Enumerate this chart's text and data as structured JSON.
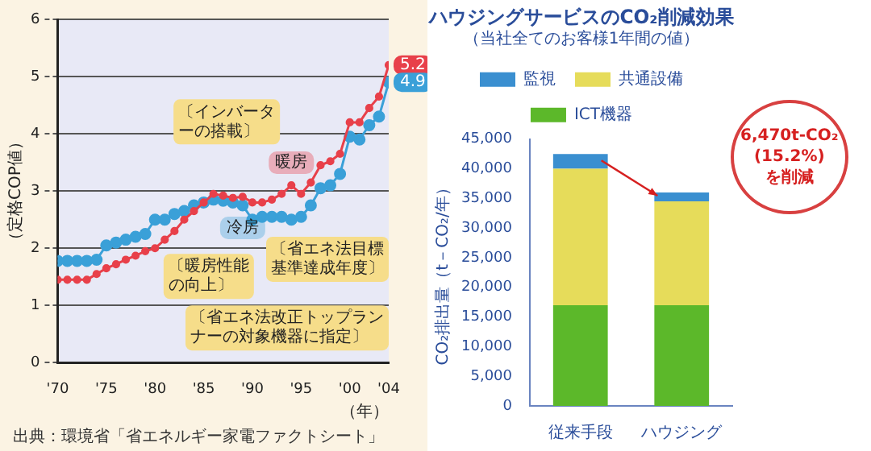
{
  "chart_data": [
    {
      "type": "line",
      "ylabel": "（定格COP値）",
      "xlabel": "（年）",
      "x": [
        1970,
        1971,
        1972,
        1973,
        1974,
        1975,
        1976,
        1977,
        1978,
        1979,
        1980,
        1981,
        1982,
        1983,
        1984,
        1985,
        1986,
        1987,
        1988,
        1989,
        1990,
        1991,
        1992,
        1993,
        1994,
        1995,
        1996,
        1997,
        1998,
        1999,
        2000,
        2001,
        2002,
        2003,
        2004
      ],
      "series": [
        {
          "name": "暖房",
          "color": "#e8404a",
          "values": [
            1.45,
            1.45,
            1.45,
            1.45,
            1.55,
            1.65,
            1.72,
            1.8,
            1.87,
            1.95,
            2.0,
            2.15,
            2.3,
            2.5,
            2.65,
            2.8,
            2.95,
            2.92,
            2.88,
            2.9,
            2.8,
            2.8,
            2.85,
            2.95,
            3.1,
            2.95,
            3.15,
            3.45,
            3.52,
            3.65,
            4.2,
            4.2,
            4.45,
            4.65,
            5.2
          ],
          "value_labels": [
            null,
            null,
            null,
            null,
            null,
            null,
            null,
            null,
            null,
            null,
            null,
            null,
            null,
            null,
            null,
            null,
            null,
            null,
            null,
            null,
            null,
            null,
            null,
            null,
            null,
            null,
            null,
            null,
            null,
            null,
            null,
            null,
            null,
            null,
            "5.2"
          ]
        },
        {
          "name": "冷房",
          "color": "#3aa0d8",
          "values": [
            1.78,
            1.78,
            1.78,
            1.78,
            1.8,
            2.05,
            2.1,
            2.15,
            2.2,
            2.25,
            2.5,
            2.5,
            2.6,
            2.65,
            2.75,
            2.8,
            2.85,
            2.83,
            2.8,
            2.75,
            2.5,
            2.55,
            2.55,
            2.55,
            2.5,
            2.55,
            2.75,
            3.05,
            3.1,
            3.3,
            3.95,
            3.9,
            4.15,
            4.3,
            4.9
          ],
          "value_labels": [
            null,
            null,
            null,
            null,
            null,
            null,
            null,
            null,
            null,
            null,
            null,
            null,
            null,
            null,
            null,
            null,
            null,
            null,
            null,
            null,
            null,
            null,
            null,
            null,
            null,
            null,
            null,
            null,
            null,
            null,
            null,
            null,
            null,
            null,
            "4.9"
          ]
        }
      ],
      "xlim": [
        1970,
        2004
      ],
      "xticks": [
        {
          "value": 1970,
          "label": "'70"
        },
        {
          "value": 1975,
          "label": "'75"
        },
        {
          "value": 1980,
          "label": "'80"
        },
        {
          "value": 1985,
          "label": "'85"
        },
        {
          "value": 1990,
          "label": "'90"
        },
        {
          "value": 1995,
          "label": "'95"
        },
        {
          "value": 2000,
          "label": "'00"
        },
        {
          "value": 2004,
          "label": "'04"
        }
      ],
      "ylim": [
        0,
        6
      ],
      "yticks": [
        0,
        1,
        2,
        3,
        4,
        5,
        6
      ],
      "grid": "y",
      "marker": "circle",
      "legend": false,
      "annotations": [
        "〔インバーターの搭載〕",
        "〔暖房性能の向上〕",
        "〔省エネ法目標基準達成年度〕",
        "〔省エネ法改正トップランナーの対象機器に指定〕",
        "出典：環境省「省エネルギー家電ファクトシート」"
      ]
    },
    {
      "type": "bar",
      "stacked": true,
      "title": "ハウジングサービスのCO₂削減効果",
      "subtitle": "（当社全てのお客様1年間の値）",
      "ylabel": "CO₂排出量（t－CO₂/年）",
      "categories": [
        "従来手段",
        "ハウジング"
      ],
      "series": [
        {
          "name": "ICT機器",
          "color": "#5cb82a",
          "values": [
            17000,
            17000
          ]
        },
        {
          "name": "共通設備",
          "color": "#e6dc5a",
          "values": [
            23000,
            17500
          ]
        },
        {
          "name": "監視",
          "color": "#3a8fd0",
          "values": [
            2500,
            1500
          ]
        }
      ],
      "ylim": [
        0,
        45000
      ],
      "yticks": [
        {
          "value": 0,
          "label": "0"
        },
        {
          "value": 5000,
          "label": "5,000"
        },
        {
          "value": 10000,
          "label": "10,000"
        },
        {
          "value": 15000,
          "label": "15,000"
        },
        {
          "value": 20000,
          "label": "20,000"
        },
        {
          "value": 25000,
          "label": "25,000"
        },
        {
          "value": 30000,
          "label": "30,000"
        },
        {
          "value": 35000,
          "label": "35,000"
        },
        {
          "value": 40000,
          "label": "40,000"
        },
        {
          "value": 45000,
          "label": "45,000"
        }
      ],
      "grid": false,
      "legend": "top",
      "annotations": [
        "6,470t-CO₂\n(15.2%)\nを削減"
      ]
    }
  ]
}
